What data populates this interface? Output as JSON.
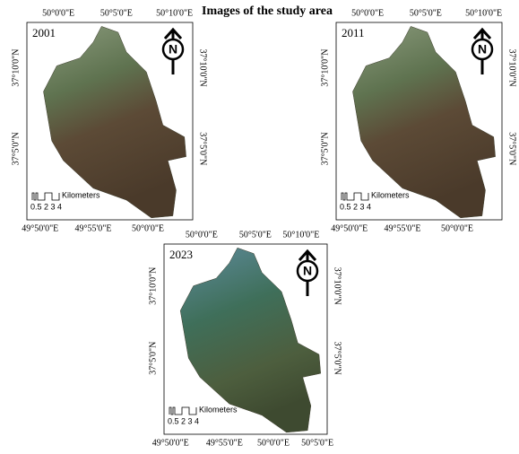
{
  "title": "Images of the study area",
  "panels": [
    {
      "year": "2001",
      "north": "N",
      "top_ticks": [
        "50°0'0\"E",
        "50°5'0\"E",
        "50°10'0\"E"
      ],
      "bottom_ticks": [
        "49°50'0\"E",
        "49°55'0\"E",
        "50°0'0\"E"
      ],
      "left_ticks": [
        "37°10'0\"N",
        "37°5'0\"N"
      ],
      "right_ticks": [
        "37°10'0\"N",
        "37°5'0\"N"
      ],
      "scale_numbers": "0.5 2 3 4",
      "scale_unit": "Kilometers"
    },
    {
      "year": "2011",
      "north": "N",
      "top_ticks": [
        "50°0'0\"E",
        "50°5'0\"E",
        "50°10'0\"E"
      ],
      "bottom_ticks": [
        "49°50'0\"E",
        "49°55'0\"E",
        "50°0'0\"E"
      ],
      "left_ticks": [
        "37°10'0\"N",
        "37°5'0\"N"
      ],
      "right_ticks": [
        "37°10'0\"N",
        "37°5'0\"N"
      ],
      "scale_numbers": "0.5 2 3 4",
      "scale_unit": "Kilometers"
    },
    {
      "year": "2023",
      "north": "N",
      "top_ticks": [
        "50°0'0\"E",
        "50°5'0\"E",
        "50°10'0\"E"
      ],
      "bottom_ticks": [
        "49°50'0\"E",
        "49°55'0\"E",
        "50°0'0\"E",
        "50°5'0\"E"
      ],
      "left_ticks": [
        "37°10'0\"N",
        "37°5'0\"N"
      ],
      "right_ticks": [
        "37°10'0\"N",
        "37°5'0\"N"
      ],
      "scale_numbers": "0.5 2 3 4",
      "scale_unit": "Kilometers"
    }
  ]
}
